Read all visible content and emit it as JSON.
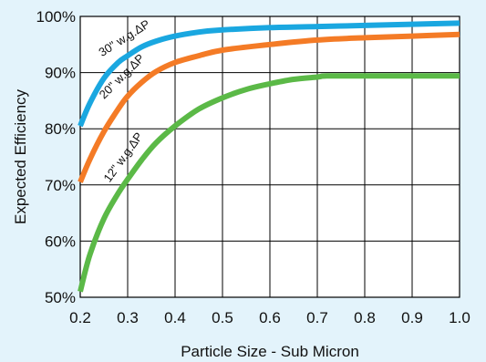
{
  "chart_data": {
    "type": "line",
    "xlabel": "Particle Size - Sub Micron",
    "ylabel": "Expected Efficiency",
    "xlim": [
      0.2,
      1.0
    ],
    "ylim": [
      50,
      100
    ],
    "x_ticks": [
      "0.2",
      "0.3",
      "0.4",
      "0.5",
      "0.6",
      "0.7",
      "0.8",
      "0.9",
      "1.0"
    ],
    "y_ticks": [
      "50%",
      "60%",
      "70%",
      "80%",
      "90%",
      "100%"
    ],
    "grid": true,
    "series": [
      {
        "name": "30\" w.g.ΔP",
        "color": "#1aa7e0",
        "x": [
          0.2,
          0.22,
          0.25,
          0.28,
          0.3,
          0.33,
          0.36,
          0.4,
          0.45,
          0.5,
          0.6,
          0.7,
          0.8,
          0.9,
          1.0
        ],
        "y": [
          80.5,
          84.5,
          89.0,
          91.8,
          93.0,
          94.6,
          95.6,
          96.5,
          97.2,
          97.6,
          98.0,
          98.2,
          98.4,
          98.6,
          98.8
        ]
      },
      {
        "name": "20\" w.g.ΔP",
        "color": "#f47b26",
        "x": [
          0.2,
          0.22,
          0.25,
          0.28,
          0.3,
          0.33,
          0.36,
          0.4,
          0.45,
          0.5,
          0.6,
          0.7,
          0.8,
          0.9,
          1.0
        ],
        "y": [
          70.5,
          74.5,
          79.5,
          83.5,
          85.8,
          88.3,
          90.2,
          91.8,
          93.0,
          94.0,
          95.0,
          95.8,
          96.2,
          96.5,
          96.8
        ]
      },
      {
        "name": "12\" w.g.ΔP",
        "color": "#5bb947",
        "x": [
          0.2,
          0.22,
          0.25,
          0.28,
          0.3,
          0.33,
          0.36,
          0.4,
          0.45,
          0.5,
          0.55,
          0.6,
          0.65,
          0.7,
          0.72,
          0.8,
          0.9,
          1.0
        ],
        "y": [
          51.0,
          57.5,
          64.0,
          68.5,
          71.0,
          74.5,
          77.5,
          80.5,
          83.5,
          85.5,
          87.0,
          88.0,
          88.8,
          89.2,
          89.4,
          89.4,
          89.4,
          89.4
        ]
      }
    ]
  }
}
